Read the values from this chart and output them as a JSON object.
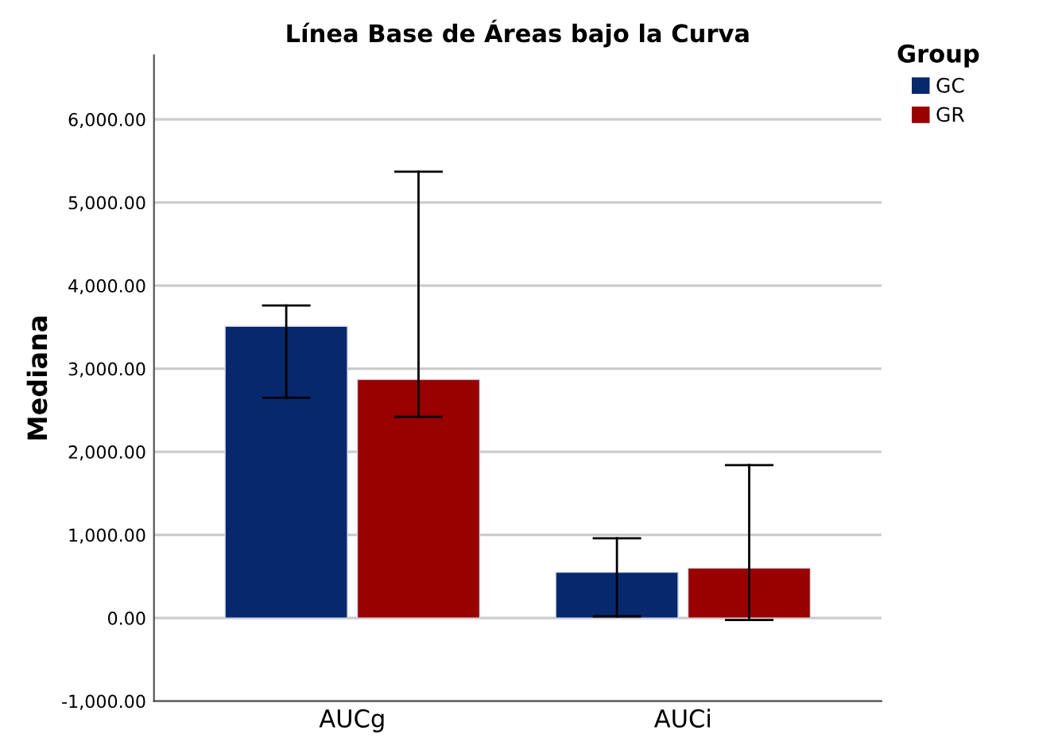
{
  "chart_data": {
    "type": "bar",
    "title": "Línea Base de Áreas bajo la Curva",
    "ylabel": "Mediana",
    "legend_title": "Group",
    "categories": [
      "AUCg",
      "AUCi"
    ],
    "series": [
      {
        "name": "GC",
        "color": "#08286e",
        "values": [
          3510,
          550
        ],
        "errors": [
          [
            2650,
            3760
          ],
          [
            20,
            960
          ]
        ]
      },
      {
        "name": "GR",
        "color": "#990000",
        "values": [
          2870,
          600
        ],
        "errors": [
          [
            2420,
            5370
          ],
          [
            -25,
            1840
          ]
        ]
      }
    ],
    "ylim": [
      -1000,
      6770
    ],
    "yticks": [
      {
        "value": -1000,
        "label": "-1,000.00"
      },
      {
        "value": 0,
        "label": "0.00"
      },
      {
        "value": 1000,
        "label": "1,000.00"
      },
      {
        "value": 2000,
        "label": "2,000.00"
      },
      {
        "value": 3000,
        "label": "3,000.00"
      },
      {
        "value": 4000,
        "label": "4,000.00"
      },
      {
        "value": 5000,
        "label": "5,000.00"
      },
      {
        "value": 6000,
        "label": "6,000.00"
      }
    ],
    "grid": "y",
    "legend": "top right"
  }
}
